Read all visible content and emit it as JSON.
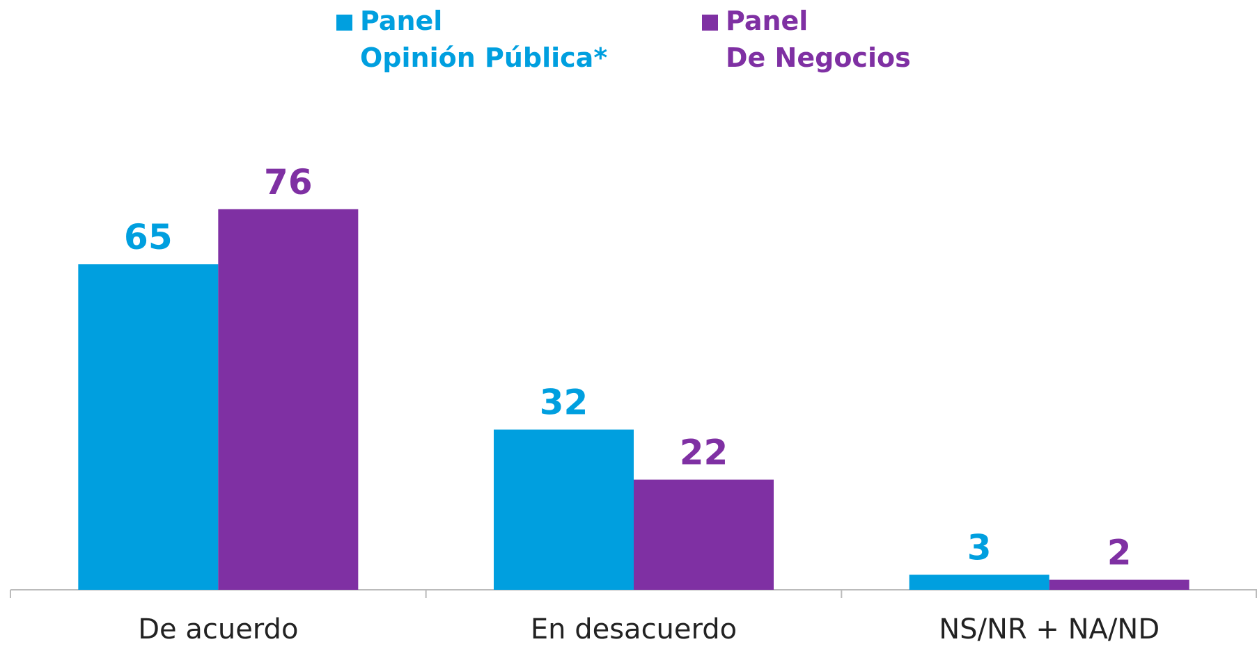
{
  "chart_data": {
    "type": "bar",
    "categories": [
      "De acuerdo",
      "En desacuerdo",
      "NS/NR + NA/ND"
    ],
    "series": [
      {
        "name": "Panel\nOpinión Pública*",
        "color": "#009fdf",
        "values": [
          65,
          32,
          3
        ]
      },
      {
        "name": "Panel\nDe Negocios",
        "color": "#7f30a3",
        "values": [
          76,
          22,
          2
        ]
      }
    ],
    "ylim": [
      0,
      100
    ],
    "legend": "top"
  }
}
